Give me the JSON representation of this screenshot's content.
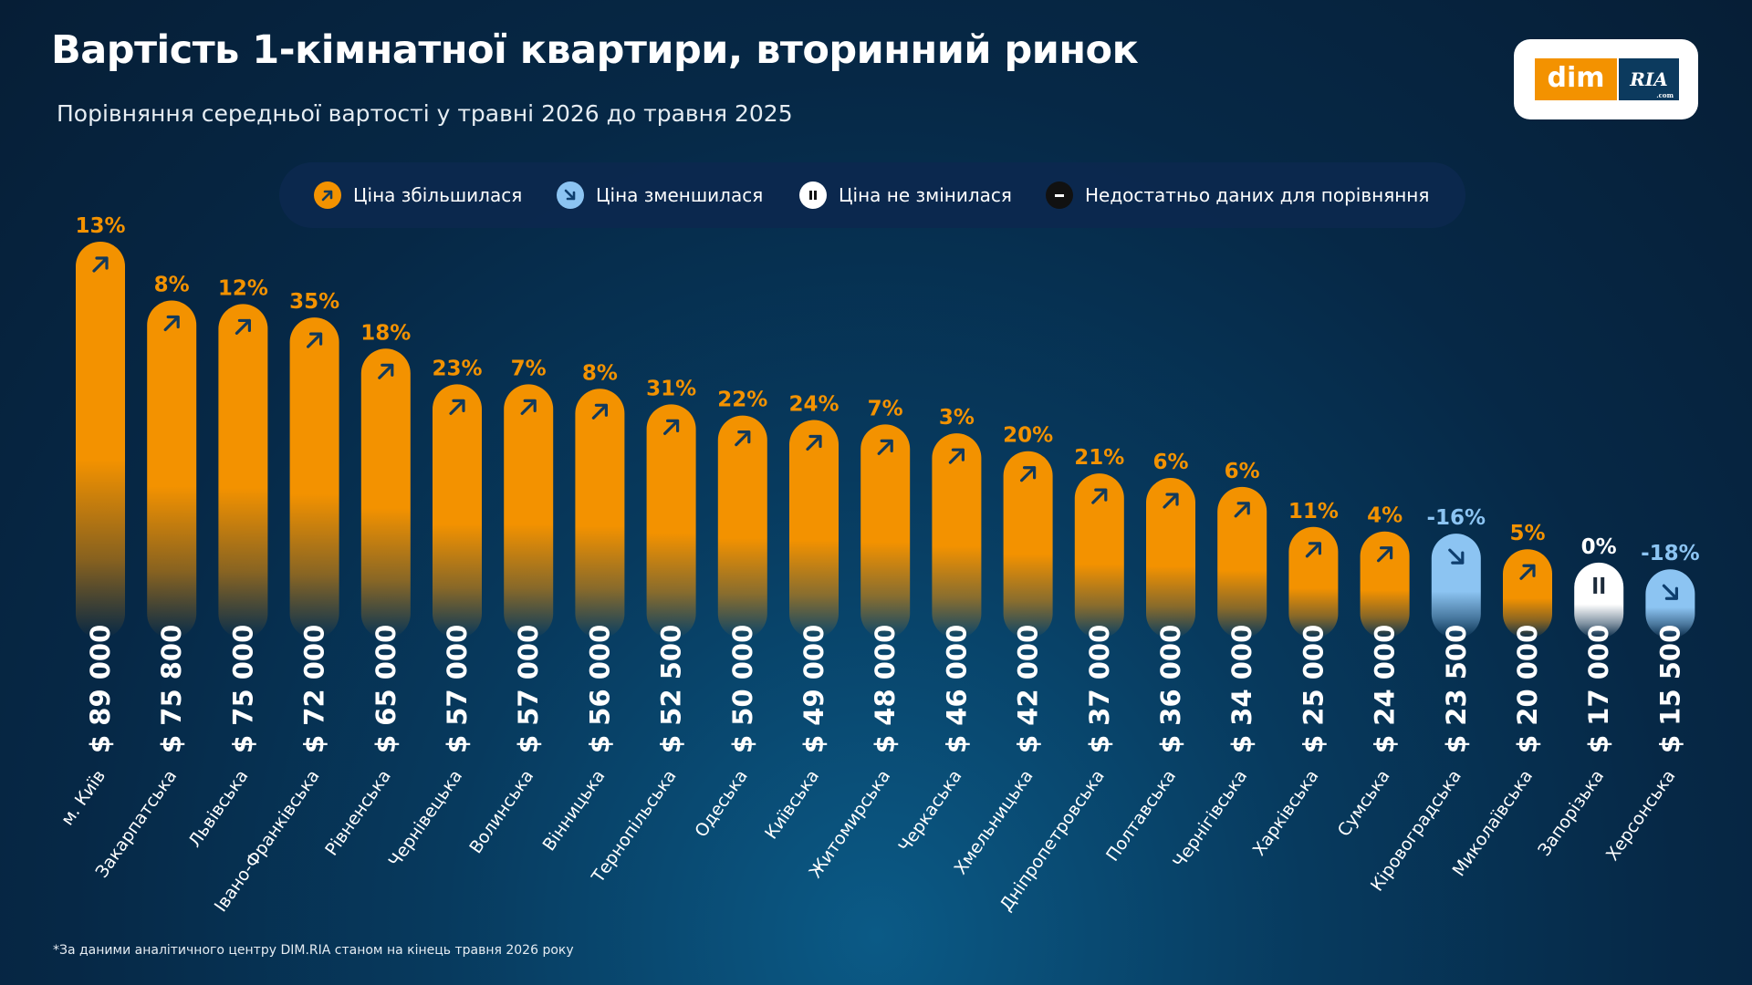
{
  "header": {
    "title": "Вартість 1-кімнатної квартири, вторинний ринок",
    "subtitle": "Порівняння середньої вартості у травні 2026 до травня 2025"
  },
  "logo": {
    "left_text": "dim",
    "right_text": "RIA",
    "right_suffix": ".com"
  },
  "legend": [
    {
      "label": "Ціна збільшилася",
      "icon": "arrow-up-right-icon",
      "color": "#f39200"
    },
    {
      "label": "Ціна зменшилася",
      "icon": "arrow-down-right-icon",
      "color": "#8cc4f2"
    },
    {
      "label": "Ціна не змінилася",
      "icon": "pause-icon",
      "color": "#ffffff"
    },
    {
      "label": "Недостатньо даних для порівняння",
      "icon": "minus-icon",
      "color": "#111111"
    }
  ],
  "colors": {
    "up": "#f39200",
    "down": "#8cc4f2",
    "flat": "#ffffff",
    "background": "#062846",
    "icon_on_up": "#123a5c",
    "icon_on_down": "#0e3e6e"
  },
  "footnote": "*За даними аналітичного центру DIM.RIA станом на кінець травня 2026 року",
  "chart_data": {
    "type": "bar",
    "title": "Вартість 1-кімнатної квартири, вторинний ринок",
    "subtitle": "Порівняння середньої вартості у травні 2026 до травня 2025",
    "unit": "$",
    "categories": [
      "м. Київ",
      "Закарпатська",
      "Львівська",
      "Івано-Франківська",
      "Рівненська",
      "Чернівецька",
      "Волинська",
      "Вінницька",
      "Тернопільська",
      "Одеська",
      "Київська",
      "Житомирська",
      "Черкаська",
      "Хмельницька",
      "Дніпропетровська",
      "Полтавська",
      "Чернігівська",
      "Харківська",
      "Сумська",
      "Кіровоградська",
      "Миколаївська",
      "Запорізька",
      "Херсонська"
    ],
    "values": [
      89000,
      75800,
      75000,
      72000,
      65000,
      57000,
      57000,
      56000,
      52500,
      50000,
      49000,
      48000,
      46000,
      42000,
      37000,
      36000,
      34000,
      25000,
      24000,
      23500,
      20000,
      17000,
      15500
    ],
    "value_labels": [
      "$ 89 000",
      "$ 75 800",
      "$ 75 000",
      "$ 72 000",
      "$ 65 000",
      "$ 57 000",
      "$ 57 000",
      "$ 56 000",
      "$ 52 500",
      "$ 50 000",
      "$ 49 000",
      "$ 48 000",
      "$ 46 000",
      "$ 42 000",
      "$ 37 000",
      "$ 36 000",
      "$ 34 000",
      "$ 25 000",
      "$ 24 000",
      "$ 23 500",
      "$ 20 000",
      "$ 17 000",
      "$ 15 500"
    ],
    "change_labels": [
      "13%",
      "8%",
      "12%",
      "35%",
      "18%",
      "23%",
      "7%",
      "8%",
      "31%",
      "22%",
      "24%",
      "7%",
      "3%",
      "20%",
      "21%",
      "6%",
      "6%",
      "11%",
      "4%",
      "-16%",
      "5%",
      "0%",
      "-18%"
    ],
    "status": [
      "up",
      "up",
      "up",
      "up",
      "up",
      "up",
      "up",
      "up",
      "up",
      "up",
      "up",
      "up",
      "up",
      "up",
      "up",
      "up",
      "up",
      "up",
      "up",
      "down",
      "up",
      "flat",
      "down"
    ],
    "ylim": [
      0,
      89000
    ],
    "grid": false,
    "legend_position": "top-center"
  }
}
